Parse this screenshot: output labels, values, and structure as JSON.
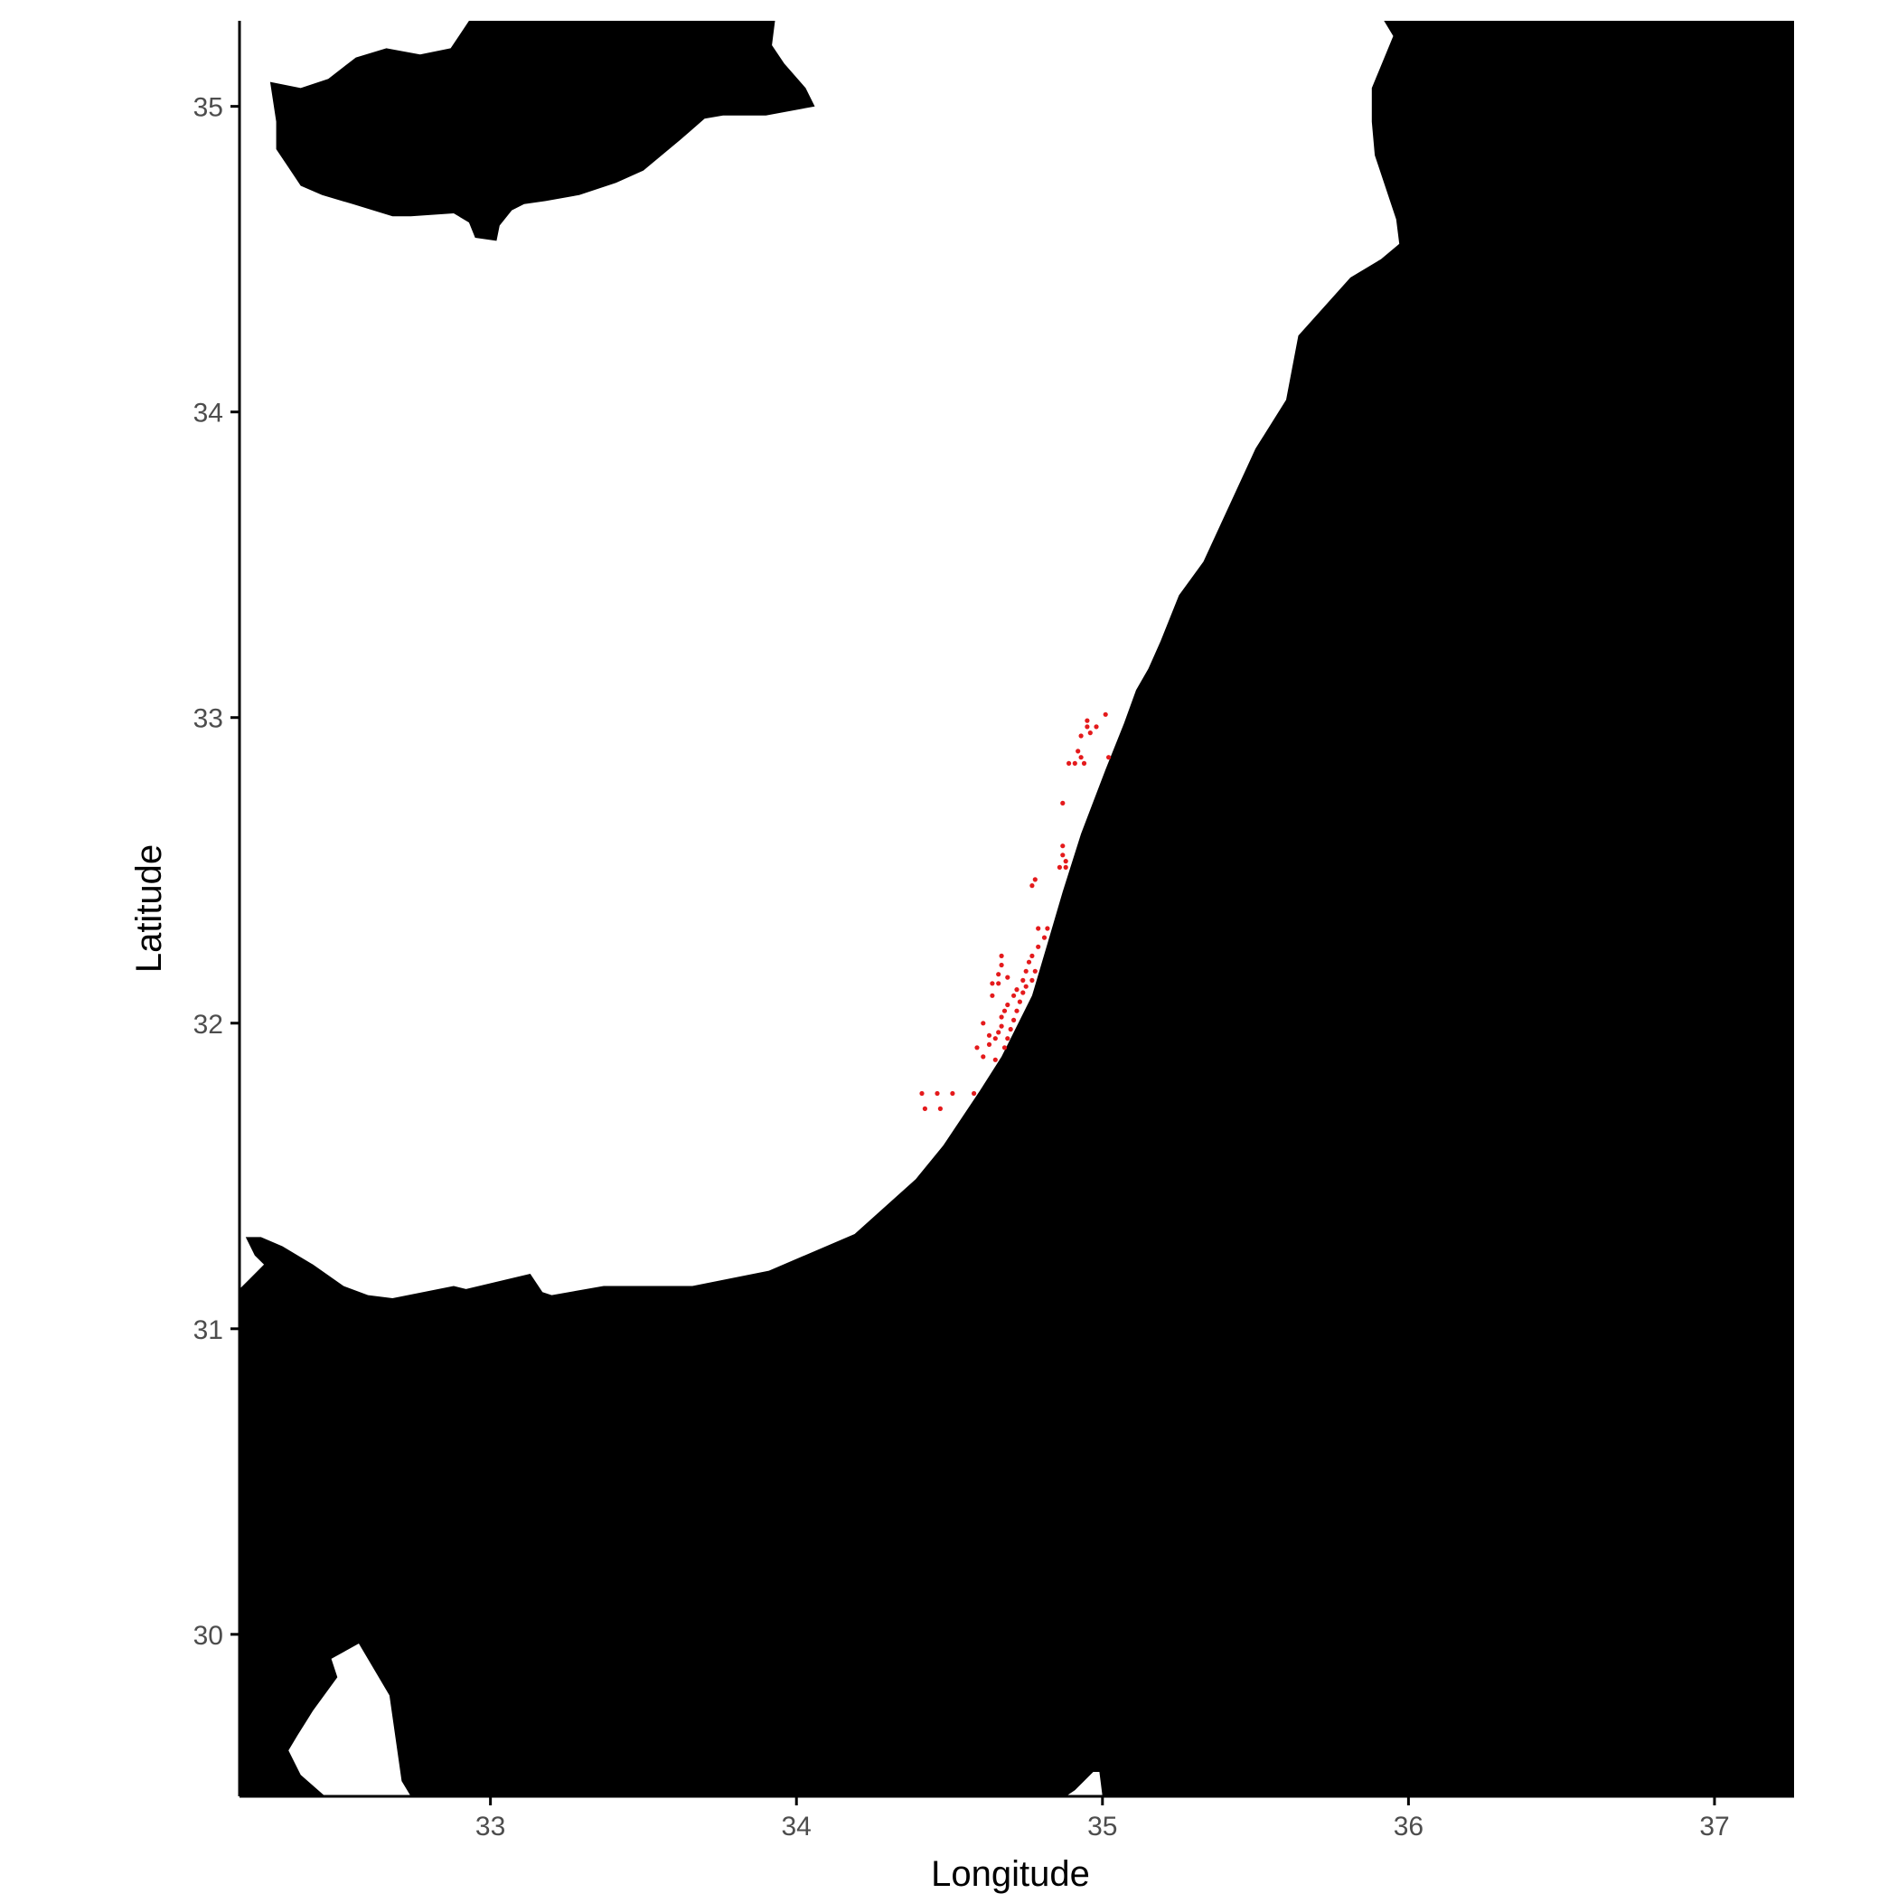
{
  "chart_data": {
    "type": "scatter",
    "title": "",
    "xlabel": "Longitude",
    "ylabel": "Latitude",
    "xlim": [
      32.18,
      37.26
    ],
    "ylim": [
      29.47,
      35.28
    ],
    "x_ticks": [
      {
        "value": 33,
        "label": "33"
      },
      {
        "value": 34,
        "label": "34"
      },
      {
        "value": 35,
        "label": "35"
      },
      {
        "value": 36,
        "label": "36"
      },
      {
        "value": 37,
        "label": "37"
      }
    ],
    "y_ticks": [
      {
        "value": 30,
        "label": "30"
      },
      {
        "value": 31,
        "label": "31"
      },
      {
        "value": 32,
        "label": "32"
      },
      {
        "value": 33,
        "label": "33"
      },
      {
        "value": 34,
        "label": "34"
      },
      {
        "value": 35,
        "label": "35"
      }
    ],
    "grid": false,
    "colors": {
      "land": "#000000",
      "sea": "#ffffff",
      "points": "#e41a1c",
      "axis": "#000000",
      "tick_label": "#4d4d4d"
    },
    "land_polygons": [
      {
        "name": "cyprus",
        "lonlat": [
          [
            32.28,
            35.08
          ],
          [
            32.38,
            35.06
          ],
          [
            32.47,
            35.09
          ],
          [
            32.56,
            35.16
          ],
          [
            32.66,
            35.19
          ],
          [
            32.77,
            35.17
          ],
          [
            32.87,
            35.19
          ],
          [
            32.93,
            35.28
          ],
          [
            33.93,
            35.28
          ],
          [
            33.92,
            35.2
          ],
          [
            33.96,
            35.14
          ],
          [
            34.03,
            35.06
          ],
          [
            34.06,
            35.0
          ],
          [
            33.9,
            34.97
          ],
          [
            33.76,
            34.97
          ],
          [
            33.7,
            34.96
          ],
          [
            33.62,
            34.89
          ],
          [
            33.5,
            34.79
          ],
          [
            33.41,
            34.75
          ],
          [
            33.29,
            34.71
          ],
          [
            33.18,
            34.69
          ],
          [
            33.11,
            34.68
          ],
          [
            33.07,
            34.66
          ],
          [
            33.03,
            34.61
          ],
          [
            33.02,
            34.56
          ],
          [
            32.95,
            34.57
          ],
          [
            32.93,
            34.62
          ],
          [
            32.88,
            34.65
          ],
          [
            32.74,
            34.64
          ],
          [
            32.68,
            34.64
          ],
          [
            32.55,
            34.68
          ],
          [
            32.45,
            34.71
          ],
          [
            32.38,
            34.74
          ],
          [
            32.34,
            34.8
          ],
          [
            32.3,
            34.86
          ],
          [
            32.3,
            34.95
          ]
        ]
      },
      {
        "name": "levant-coast",
        "lonlat": [
          [
            35.92,
            35.28
          ],
          [
            37.26,
            35.28
          ],
          [
            37.26,
            29.47
          ],
          [
            35.0,
            29.47
          ],
          [
            34.99,
            29.55
          ],
          [
            34.97,
            29.55
          ],
          [
            34.91,
            29.49
          ],
          [
            34.88,
            29.47
          ],
          [
            32.74,
            29.47
          ],
          [
            32.71,
            29.52
          ],
          [
            32.67,
            29.8
          ],
          [
            32.57,
            29.97
          ],
          [
            32.48,
            29.92
          ],
          [
            32.5,
            29.86
          ],
          [
            32.42,
            29.75
          ],
          [
            32.37,
            29.67
          ],
          [
            32.34,
            29.62
          ],
          [
            32.38,
            29.54
          ],
          [
            32.46,
            29.47
          ],
          [
            32.18,
            29.47
          ],
          [
            32.18,
            31.13
          ],
          [
            32.21,
            31.16
          ],
          [
            32.26,
            31.21
          ],
          [
            32.23,
            31.24
          ],
          [
            32.2,
            31.3
          ],
          [
            32.25,
            31.3
          ],
          [
            32.32,
            31.27
          ],
          [
            32.42,
            31.21
          ],
          [
            32.52,
            31.14
          ],
          [
            32.6,
            31.11
          ],
          [
            32.68,
            31.1
          ],
          [
            32.88,
            31.14
          ],
          [
            32.92,
            31.13
          ],
          [
            33.13,
            31.18
          ],
          [
            33.17,
            31.12
          ],
          [
            33.2,
            31.11
          ],
          [
            33.37,
            31.14
          ],
          [
            33.66,
            31.14
          ],
          [
            33.91,
            31.19
          ],
          [
            34.19,
            31.31
          ],
          [
            34.39,
            31.49
          ],
          [
            34.48,
            31.6
          ],
          [
            34.6,
            31.78
          ],
          [
            34.67,
            31.89
          ],
          [
            34.77,
            32.09
          ],
          [
            34.82,
            32.26
          ],
          [
            34.87,
            32.43
          ],
          [
            34.93,
            32.62
          ],
          [
            35.01,
            32.83
          ],
          [
            35.07,
            32.98
          ],
          [
            35.11,
            33.09
          ],
          [
            35.15,
            33.16
          ],
          [
            35.19,
            33.25
          ],
          [
            35.25,
            33.4
          ],
          [
            35.33,
            33.51
          ],
          [
            35.5,
            33.88
          ],
          [
            35.6,
            34.04
          ],
          [
            35.64,
            34.25
          ],
          [
            35.81,
            34.44
          ],
          [
            35.91,
            34.5
          ],
          [
            35.97,
            34.55
          ],
          [
            35.96,
            34.63
          ],
          [
            35.89,
            34.84
          ],
          [
            35.88,
            34.95
          ],
          [
            35.88,
            35.06
          ],
          [
            35.95,
            35.23
          ]
        ]
      }
    ],
    "points": [
      {
        "x": 34.41,
        "y": 31.77
      },
      {
        "x": 34.46,
        "y": 31.77
      },
      {
        "x": 34.51,
        "y": 31.77
      },
      {
        "x": 34.42,
        "y": 31.72
      },
      {
        "x": 34.47,
        "y": 31.72
      },
      {
        "x": 34.58,
        "y": 31.77
      },
      {
        "x": 34.59,
        "y": 31.92
      },
      {
        "x": 34.61,
        "y": 31.89
      },
      {
        "x": 34.61,
        "y": 32.0
      },
      {
        "x": 34.63,
        "y": 31.96
      },
      {
        "x": 34.63,
        "y": 31.93
      },
      {
        "x": 34.65,
        "y": 31.95
      },
      {
        "x": 34.65,
        "y": 31.88
      },
      {
        "x": 34.66,
        "y": 31.97
      },
      {
        "x": 34.67,
        "y": 31.99
      },
      {
        "x": 34.67,
        "y": 32.02
      },
      {
        "x": 34.68,
        "y": 31.92
      },
      {
        "x": 34.68,
        "y": 32.04
      },
      {
        "x": 34.69,
        "y": 31.95
      },
      {
        "x": 34.69,
        "y": 32.06
      },
      {
        "x": 34.7,
        "y": 31.98
      },
      {
        "x": 34.71,
        "y": 32.01
      },
      {
        "x": 34.71,
        "y": 32.09
      },
      {
        "x": 34.72,
        "y": 32.04
      },
      {
        "x": 34.72,
        "y": 32.11
      },
      {
        "x": 34.73,
        "y": 32.07
      },
      {
        "x": 34.74,
        "y": 32.14
      },
      {
        "x": 34.74,
        "y": 32.1
      },
      {
        "x": 34.75,
        "y": 32.17
      },
      {
        "x": 34.75,
        "y": 32.12
      },
      {
        "x": 34.76,
        "y": 32.2
      },
      {
        "x": 34.77,
        "y": 32.14
      },
      {
        "x": 34.77,
        "y": 32.22
      },
      {
        "x": 34.78,
        "y": 32.17
      },
      {
        "x": 34.79,
        "y": 32.25
      },
      {
        "x": 34.79,
        "y": 32.31
      },
      {
        "x": 34.81,
        "y": 32.28
      },
      {
        "x": 34.82,
        "y": 32.31
      },
      {
        "x": 34.64,
        "y": 32.09
      },
      {
        "x": 34.64,
        "y": 32.13
      },
      {
        "x": 34.66,
        "y": 32.13
      },
      {
        "x": 34.66,
        "y": 32.16
      },
      {
        "x": 34.67,
        "y": 32.19
      },
      {
        "x": 34.67,
        "y": 32.22
      },
      {
        "x": 34.69,
        "y": 32.15
      },
      {
        "x": 34.77,
        "y": 32.45
      },
      {
        "x": 34.78,
        "y": 32.47
      },
      {
        "x": 34.86,
        "y": 32.51
      },
      {
        "x": 34.87,
        "y": 32.55
      },
      {
        "x": 34.87,
        "y": 32.58
      },
      {
        "x": 34.88,
        "y": 32.53
      },
      {
        "x": 34.88,
        "y": 32.51
      },
      {
        "x": 34.87,
        "y": 32.72
      },
      {
        "x": 34.89,
        "y": 32.85
      },
      {
        "x": 34.91,
        "y": 32.85
      },
      {
        "x": 34.92,
        "y": 32.89
      },
      {
        "x": 34.93,
        "y": 32.87
      },
      {
        "x": 34.93,
        "y": 32.94
      },
      {
        "x": 34.94,
        "y": 32.85
      },
      {
        "x": 34.95,
        "y": 32.97
      },
      {
        "x": 34.95,
        "y": 32.99
      },
      {
        "x": 34.96,
        "y": 32.95
      },
      {
        "x": 34.98,
        "y": 32.97
      },
      {
        "x": 35.01,
        "y": 33.01
      },
      {
        "x": 35.02,
        "y": 32.87
      }
    ]
  }
}
